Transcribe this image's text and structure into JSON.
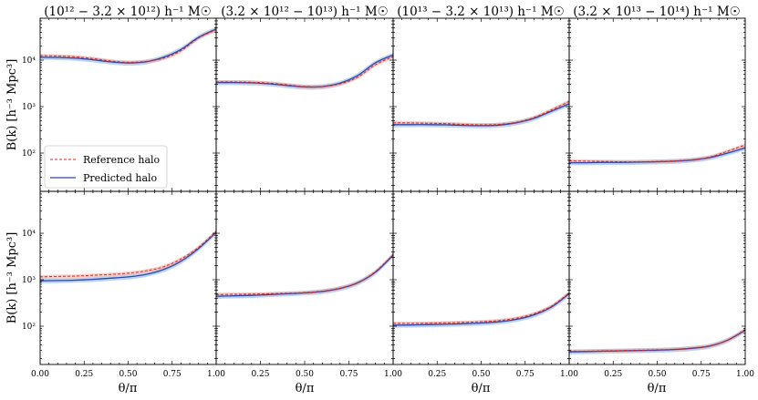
{
  "chart_data": {
    "type": "line",
    "layout": "2 rows x 4 columns, shared axes",
    "columns": [
      "(10¹² − 3.2 × 10¹²) h⁻¹ M☉",
      "(3.2 × 10¹² − 10¹³) h⁻¹ M☉",
      "(10¹³ − 3.2 × 10¹³) h⁻¹ M☉",
      "(3.2 × 10¹³ − 10¹⁴) h⁻¹ M☉"
    ],
    "xlabel": "θ/π",
    "ylabel": "B(k) [h⁻³ Mpc³]",
    "xlim": [
      0,
      1
    ],
    "xticks": [
      "0.00",
      "0.25",
      "0.50",
      "0.75",
      "1.00"
    ],
    "yscale": "log",
    "ylim": [
      15,
      80000
    ],
    "yticks": [
      {
        "value": 100,
        "label": "10²"
      },
      {
        "value": 1000,
        "label": "10³"
      },
      {
        "value": 10000,
        "label": "10⁴"
      }
    ],
    "legend": {
      "location": "lower left of top-left panel",
      "entries": [
        {
          "label": "Reference halo",
          "color": "#d62728",
          "style": "dashed"
        },
        {
          "label": "Predicted halo",
          "color": "#3344aa",
          "style": "solid"
        }
      ]
    },
    "colors": {
      "reference": "#d62728",
      "predicted": "#3344aa",
      "reference_band": "#f4a896",
      "predicted_band": "#7fb2ee"
    },
    "x": [
      0,
      0.1,
      0.2,
      0.3,
      0.4,
      0.5,
      0.6,
      0.7,
      0.8,
      0.9,
      1.0
    ],
    "panels": [
      {
        "row": 0,
        "col": 0,
        "series": [
          {
            "name": "Reference halo",
            "values": [
              12500,
              12300,
              11800,
              10800,
              9600,
              9000,
              9400,
              11000,
              16000,
              30000,
              45000
            ]
          },
          {
            "name": "Predicted halo",
            "values": [
              11500,
              11400,
              11000,
              10200,
              9200,
              8700,
              9200,
              11500,
              17000,
              31000,
              47000
            ]
          }
        ]
      },
      {
        "row": 0,
        "col": 1,
        "series": [
          {
            "name": "Reference halo",
            "values": [
              3400,
              3400,
              3350,
              3200,
              2950,
              2700,
              2700,
              3100,
              4300,
              8000,
              12000
            ]
          },
          {
            "name": "Predicted halo",
            "values": [
              3300,
              3300,
              3250,
              3100,
              2850,
              2650,
              2700,
              3200,
              4700,
              8800,
              13000
            ]
          }
        ]
      },
      {
        "row": 0,
        "col": 2,
        "series": [
          {
            "name": "Reference halo",
            "values": [
              450,
              445,
              440,
              430,
              415,
              405,
              415,
              460,
              580,
              850,
              1300
            ]
          },
          {
            "name": "Predicted halo",
            "values": [
              410,
              410,
              410,
              405,
              395,
              390,
              400,
              450,
              560,
              800,
              1150
            ]
          }
        ]
      },
      {
        "row": 0,
        "col": 3,
        "series": [
          {
            "name": "Reference halo",
            "values": [
              68,
              67,
              66,
              65,
              65,
              66,
              68,
              72,
              82,
              110,
              150
            ]
          },
          {
            "name": "Predicted halo",
            "values": [
              62,
              62,
              63,
              63,
              64,
              65,
              67,
              71,
              80,
              100,
              130
            ]
          }
        ]
      },
      {
        "row": 1,
        "col": 0,
        "series": [
          {
            "name": "Reference halo",
            "values": [
              1150,
              1180,
              1200,
              1250,
              1300,
              1380,
              1550,
              1900,
              2800,
              5000,
              11000
            ]
          },
          {
            "name": "Predicted halo",
            "values": [
              950,
              960,
              980,
              1020,
              1080,
              1150,
              1300,
              1650,
              2500,
              4700,
              10500
            ]
          }
        ]
      },
      {
        "row": 1,
        "col": 1,
        "series": [
          {
            "name": "Reference halo",
            "values": [
              480,
              485,
              490,
              500,
              510,
              530,
              570,
              660,
              870,
              1500,
              3500
            ]
          },
          {
            "name": "Predicted halo",
            "values": [
              440,
              450,
              460,
              480,
              500,
              520,
              560,
              650,
              860,
              1450,
              3400
            ]
          }
        ]
      },
      {
        "row": 1,
        "col": 2,
        "series": [
          {
            "name": "Reference halo",
            "values": [
              115,
              115,
              116,
              118,
              121,
              125,
              132,
              148,
              185,
              270,
              520
            ]
          },
          {
            "name": "Predicted halo",
            "values": [
              105,
              106,
              108,
              110,
              113,
              117,
              124,
              140,
              175,
              260,
              500
            ]
          }
        ]
      },
      {
        "row": 1,
        "col": 3,
        "series": [
          {
            "name": "Reference halo",
            "values": [
              29,
              29,
              29.5,
              30,
              30.5,
              31,
              32,
              34,
              38,
              50,
              85
            ]
          },
          {
            "name": "Predicted halo",
            "values": [
              28,
              28.5,
              29,
              29.5,
              30,
              30.5,
              31.5,
              33.5,
              37.5,
              50,
              82
            ]
          }
        ]
      }
    ]
  }
}
